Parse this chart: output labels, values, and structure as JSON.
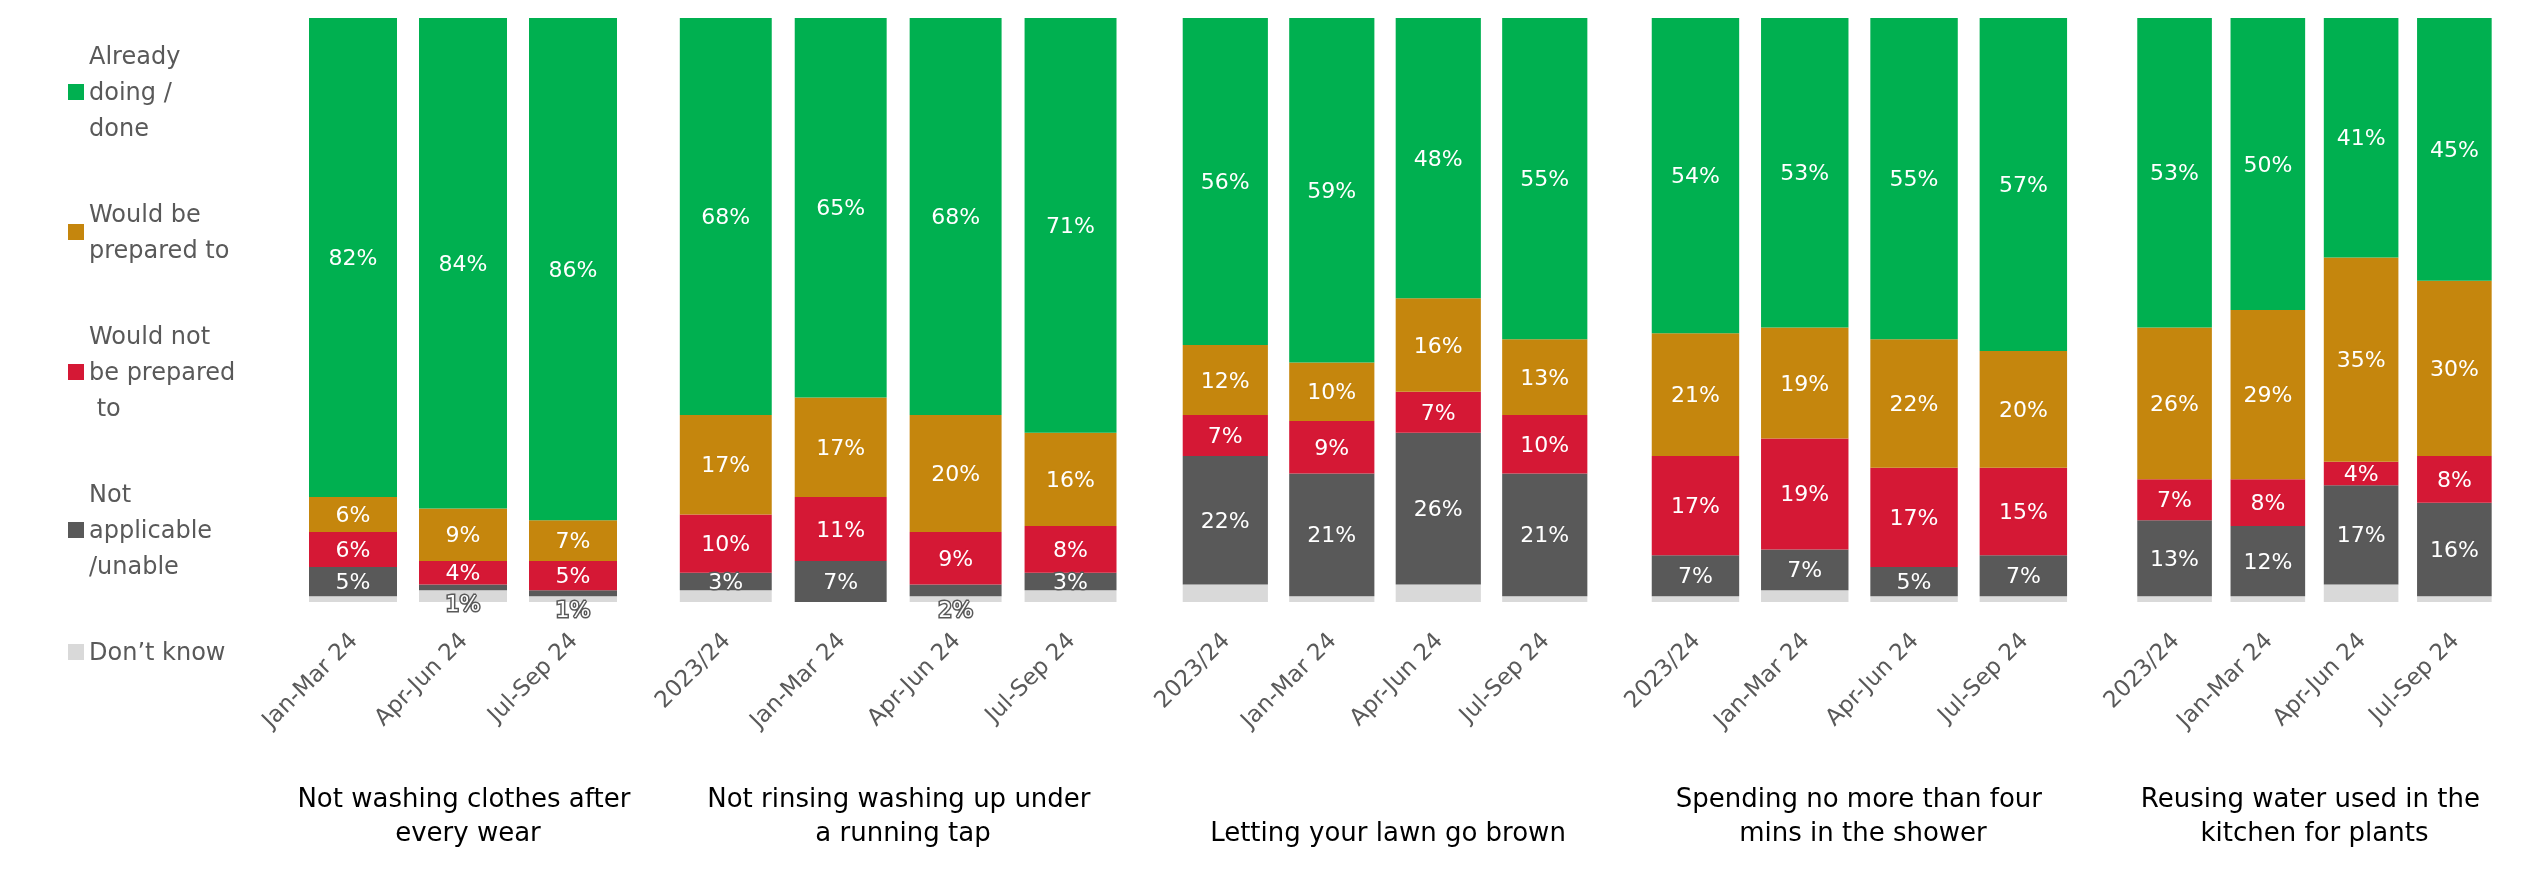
{
  "chart_data": [
    {
      "type": "bar",
      "stacked": true,
      "legend": "left",
      "xlabel": "Not washing clothes after every wear",
      "categories": [
        "Jan-Mar 24",
        "Apr-Jun 24",
        "Jul-Sep 24"
      ],
      "series": [
        {
          "name": "Don’t know",
          "color": "#d9d9d9",
          "values": [
            1,
            2,
            1
          ],
          "value_labels": [
            null,
            null,
            null
          ]
        },
        {
          "name": "Not applicable /unable",
          "color": "#595959",
          "values": [
            5,
            1,
            1
          ],
          "value_labels": [
            "5%",
            "1%",
            "1%"
          ]
        },
        {
          "name": "Would not be prepared to",
          "color": "#d51835",
          "values": [
            6,
            4,
            5
          ],
          "value_labels": [
            "6%",
            "4%",
            "5%"
          ]
        },
        {
          "name": "Would be prepared to",
          "color": "#c5860d",
          "values": [
            6,
            9,
            7
          ],
          "value_labels": [
            "6%",
            "9%",
            "7%"
          ]
        },
        {
          "name": "Already doing / done",
          "color": "#00b050",
          "values": [
            82,
            84,
            86
          ],
          "value_labels": [
            "82%",
            "84%",
            "86%"
          ]
        }
      ]
    },
    {
      "type": "bar",
      "stacked": true,
      "xlabel": "Not rinsing washing up under a running tap",
      "categories": [
        "2023/24",
        "Jan-Mar 24",
        "Apr-Jun 24",
        "Jul-Sep 24"
      ],
      "series": [
        {
          "color": "#d9d9d9",
          "values": [
            2,
            0,
            1,
            2
          ],
          "value_labels": [
            null,
            null,
            null,
            null
          ]
        },
        {
          "color": "#595959",
          "values": [
            3,
            7,
            2,
            3
          ],
          "value_labels": [
            "3%",
            "7%",
            "2%",
            "3%"
          ]
        },
        {
          "color": "#d51835",
          "values": [
            10,
            11,
            9,
            8
          ],
          "value_labels": [
            "10%",
            "11%",
            "9%",
            "8%"
          ]
        },
        {
          "color": "#c5860d",
          "values": [
            17,
            17,
            20,
            16
          ],
          "value_labels": [
            "17%",
            "17%",
            "20%",
            "16%"
          ]
        },
        {
          "color": "#00b050",
          "values": [
            68,
            65,
            68,
            71
          ],
          "value_labels": [
            "68%",
            "65%",
            "68%",
            "71%"
          ]
        }
      ]
    },
    {
      "type": "bar",
      "stacked": true,
      "xlabel": "Letting your lawn go brown",
      "categories": [
        "2023/24",
        "Jan-Mar 24",
        "Apr-Jun 24",
        "Jul-Sep 24"
      ],
      "series": [
        {
          "color": "#d9d9d9",
          "values": [
            3,
            1,
            3,
            1
          ],
          "value_labels": [
            null,
            null,
            null,
            null
          ]
        },
        {
          "color": "#595959",
          "values": [
            22,
            21,
            26,
            21
          ],
          "value_labels": [
            "22%",
            "21%",
            "26%",
            "21%"
          ]
        },
        {
          "color": "#d51835",
          "values": [
            7,
            9,
            7,
            10
          ],
          "value_labels": [
            "7%",
            "9%",
            "7%",
            "10%"
          ]
        },
        {
          "color": "#c5860d",
          "values": [
            12,
            10,
            16,
            13
          ],
          "value_labels": [
            "12%",
            "10%",
            "16%",
            "13%"
          ]
        },
        {
          "color": "#00b050",
          "values": [
            56,
            59,
            48,
            55
          ],
          "value_labels": [
            "56%",
            "59%",
            "48%",
            "55%"
          ]
        }
      ]
    },
    {
      "type": "bar",
      "stacked": true,
      "xlabel": "Spending no more than four mins in the shower",
      "categories": [
        "2023/24",
        "Jan-Mar 24",
        "Apr-Jun 24",
        "Jul-Sep 24"
      ],
      "series": [
        {
          "color": "#d9d9d9",
          "values": [
            1,
            2,
            1,
            1
          ],
          "value_labels": [
            null,
            null,
            null,
            null
          ]
        },
        {
          "color": "#595959",
          "values": [
            7,
            7,
            5,
            7
          ],
          "value_labels": [
            "7%",
            "7%",
            "5%",
            "7%"
          ]
        },
        {
          "color": "#d51835",
          "values": [
            17,
            19,
            17,
            15
          ],
          "value_labels": [
            "17%",
            "19%",
            "17%",
            "15%"
          ]
        },
        {
          "color": "#c5860d",
          "values": [
            21,
            19,
            22,
            20
          ],
          "value_labels": [
            "21%",
            "19%",
            "22%",
            "20%"
          ]
        },
        {
          "color": "#00b050",
          "values": [
            54,
            53,
            55,
            57
          ],
          "value_labels": [
            "54%",
            "53%",
            "55%",
            "57%"
          ]
        }
      ]
    },
    {
      "type": "bar",
      "stacked": true,
      "xlabel": "Reusing water used in the kitchen for plants",
      "categories": [
        "2023/24",
        "Jan-Mar 24",
        "Apr-Jun 24",
        "Jul-Sep 24"
      ],
      "series": [
        {
          "color": "#d9d9d9",
          "values": [
            1,
            1,
            3,
            1
          ],
          "value_labels": [
            null,
            null,
            null,
            null
          ]
        },
        {
          "color": "#595959",
          "values": [
            13,
            12,
            17,
            16
          ],
          "value_labels": [
            "13%",
            "12%",
            "17%",
            "16%"
          ]
        },
        {
          "color": "#d51835",
          "values": [
            7,
            8,
            4,
            8
          ],
          "value_labels": [
            "7%",
            "8%",
            "4%",
            "8%"
          ]
        },
        {
          "color": "#c5860d",
          "values": [
            26,
            29,
            35,
            30
          ],
          "value_labels": [
            "26%",
            "29%",
            "35%",
            "30%"
          ]
        },
        {
          "color": "#00b050",
          "values": [
            53,
            50,
            41,
            45
          ],
          "value_labels": [
            "53%",
            "50%",
            "41%",
            "45%"
          ]
        }
      ]
    }
  ]
}
